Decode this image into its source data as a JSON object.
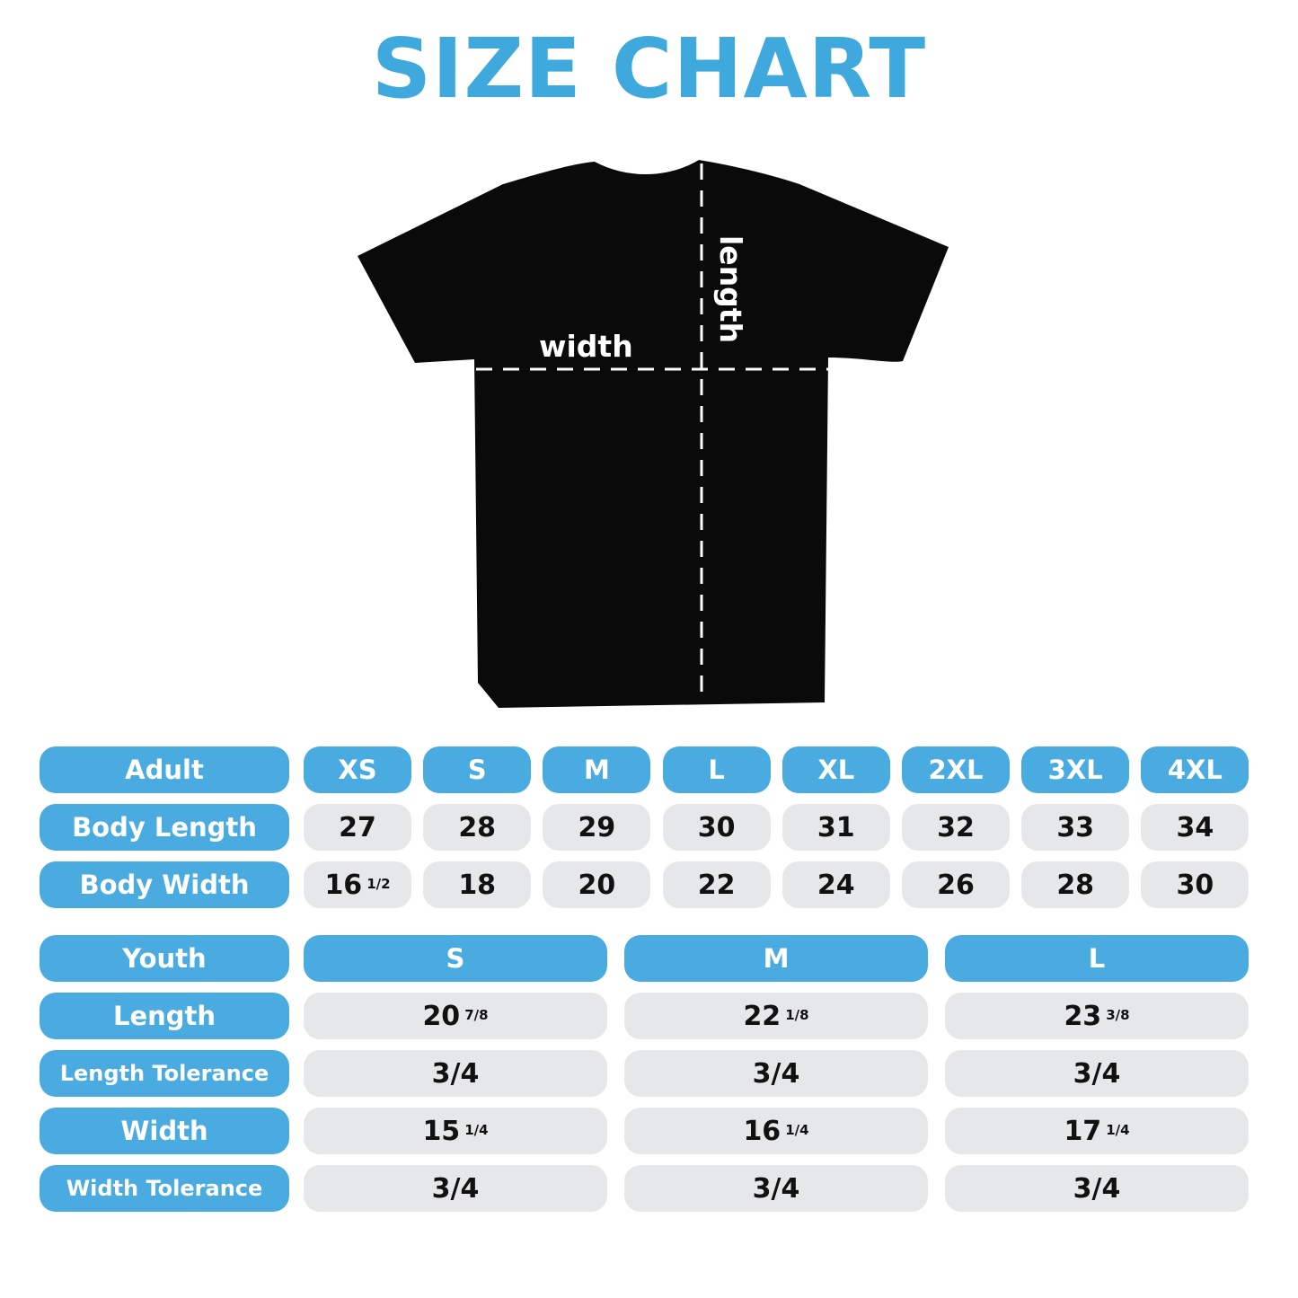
{
  "title": "SIZE CHART",
  "shirt": {
    "width_label": "width",
    "length_label": "length",
    "shirt_color": "#000000"
  },
  "colors": {
    "accent": "#49abdf",
    "title": "#3fa9dd",
    "cell": "#e6e7e9"
  },
  "adult": {
    "header": "Adult",
    "sizes": [
      "XS",
      "S",
      "M",
      "L",
      "XL",
      "2XL",
      "3XL",
      "4XL"
    ],
    "rows": [
      {
        "label": "Body Length",
        "values": [
          {
            "w": "27",
            "f": ""
          },
          {
            "w": "28",
            "f": ""
          },
          {
            "w": "29",
            "f": ""
          },
          {
            "w": "30",
            "f": ""
          },
          {
            "w": "31",
            "f": ""
          },
          {
            "w": "32",
            "f": ""
          },
          {
            "w": "33",
            "f": ""
          },
          {
            "w": "34",
            "f": ""
          }
        ]
      },
      {
        "label": "Body Width",
        "values": [
          {
            "w": "16",
            "f": "1/2"
          },
          {
            "w": "18",
            "f": ""
          },
          {
            "w": "20",
            "f": ""
          },
          {
            "w": "22",
            "f": ""
          },
          {
            "w": "24",
            "f": ""
          },
          {
            "w": "26",
            "f": ""
          },
          {
            "w": "28",
            "f": ""
          },
          {
            "w": "30",
            "f": ""
          }
        ]
      }
    ]
  },
  "youth": {
    "header": "Youth",
    "sizes": [
      "S",
      "M",
      "L"
    ],
    "rows": [
      {
        "label": "Length",
        "values": [
          {
            "w": "20",
            "f": "7/8"
          },
          {
            "w": "22",
            "f": "1/8"
          },
          {
            "w": "23",
            "f": "3/8"
          }
        ]
      },
      {
        "label": "Length Tolerance",
        "values": [
          {
            "w": "3/4",
            "f": ""
          },
          {
            "w": "3/4",
            "f": ""
          },
          {
            "w": "3/4",
            "f": ""
          }
        ]
      },
      {
        "label": "Width",
        "values": [
          {
            "w": "15",
            "f": "1/4"
          },
          {
            "w": "16",
            "f": "1/4"
          },
          {
            "w": "17",
            "f": "1/4"
          }
        ]
      },
      {
        "label": "Width Tolerance",
        "values": [
          {
            "w": "3/4",
            "f": ""
          },
          {
            "w": "3/4",
            "f": ""
          },
          {
            "w": "3/4",
            "f": ""
          }
        ]
      }
    ]
  }
}
